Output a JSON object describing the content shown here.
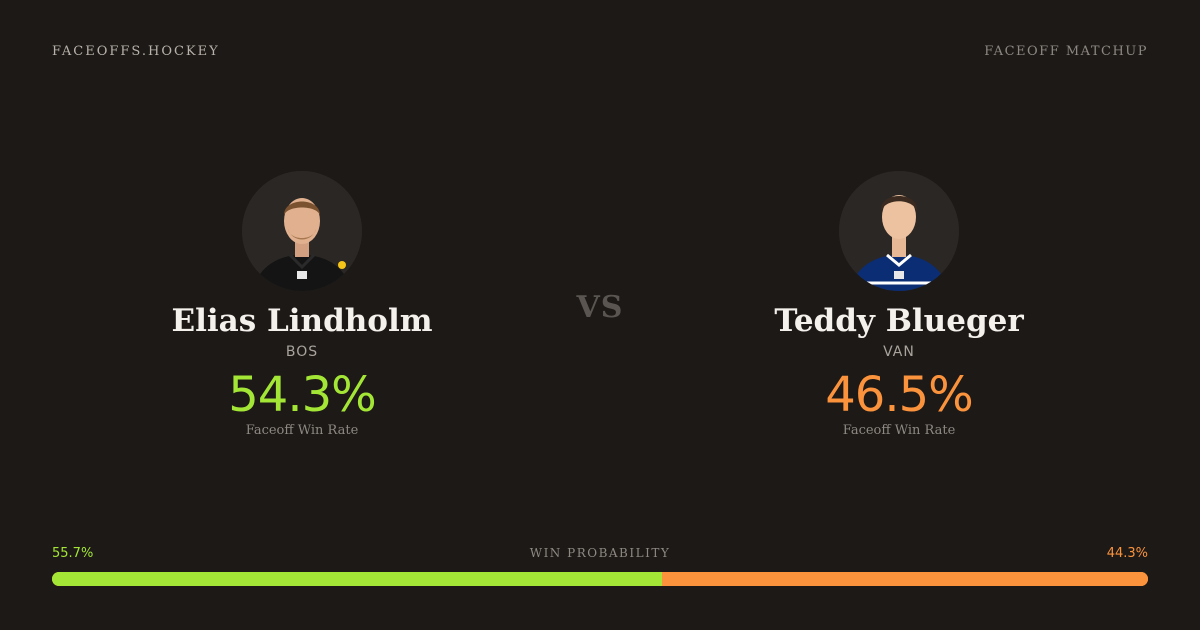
{
  "header": {
    "brand": "FACEOFFS.HOCKEY",
    "page_kind": "FACEOFF MATCHUP"
  },
  "vs_label": "VS",
  "player_left": {
    "name": "Elias Lindholm",
    "team": "BOS",
    "faceoff_rate": "54.3%",
    "rate_label": "Faceoff Win Rate",
    "accent": "#a3e635",
    "jersey_color": "#141414"
  },
  "player_right": {
    "name": "Teddy Blueger",
    "team": "VAN",
    "faceoff_rate": "46.5%",
    "rate_label": "Faceoff Win Rate",
    "accent": "#fb923c",
    "jersey_color": "#0b2d74"
  },
  "win_probability": {
    "title": "WIN PROBABILITY",
    "left_label": "55.7%",
    "right_label": "44.3%",
    "left_value": 55.7,
    "right_value": 44.3
  },
  "colors": {
    "background": "#1c1917",
    "left_accent": "#a3e635",
    "right_accent": "#fb923c"
  }
}
